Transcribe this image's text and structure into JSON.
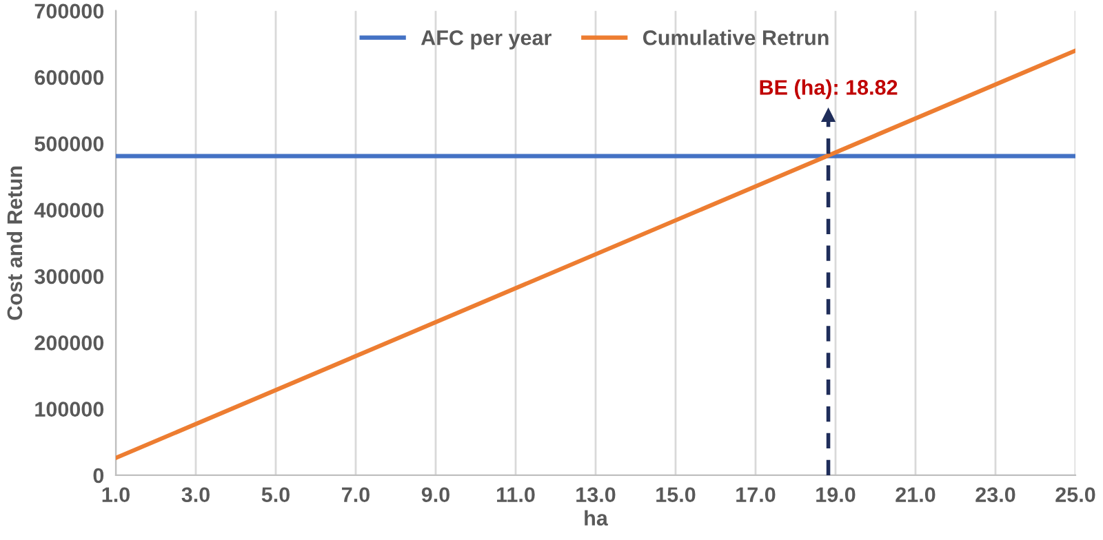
{
  "chart_data": {
    "type": "line",
    "xlabel": "ha",
    "ylabel": "Cost and Retun",
    "x": [
      1,
      25
    ],
    "series": [
      {
        "name": "AFC per year",
        "color": "#4472c4",
        "values": [
          481000,
          481000
        ]
      },
      {
        "name": "Cumulative Retrun",
        "color": "#ed7d31",
        "values": [
          26000,
          640000
        ]
      }
    ],
    "xlim": [
      1,
      25
    ],
    "xticks": [
      {
        "value": 1,
        "label": "1.0"
      },
      {
        "value": 3,
        "label": "3.0"
      },
      {
        "value": 5,
        "label": "5.0"
      },
      {
        "value": 7,
        "label": "7.0"
      },
      {
        "value": 9,
        "label": "9.0"
      },
      {
        "value": 11,
        "label": "11.0"
      },
      {
        "value": 13,
        "label": "13.0"
      },
      {
        "value": 15,
        "label": "15.0"
      },
      {
        "value": 17,
        "label": "17.0"
      },
      {
        "value": 19,
        "label": "19.0"
      },
      {
        "value": 21,
        "label": "21.0"
      },
      {
        "value": 23,
        "label": "23.0"
      },
      {
        "value": 25,
        "label": "25.0"
      }
    ],
    "ylim": [
      0,
      700000
    ],
    "yticks": [
      0,
      100000,
      200000,
      300000,
      400000,
      500000,
      600000,
      700000
    ],
    "grid": "x",
    "legend": "top",
    "marker": "none",
    "line_style": "solid",
    "ref_lines": [
      {
        "axis": "x",
        "value": 18.82,
        "color": "#1f2d5a",
        "line_style": "dashed",
        "label": "BE (ha): 18.82"
      }
    ]
  }
}
